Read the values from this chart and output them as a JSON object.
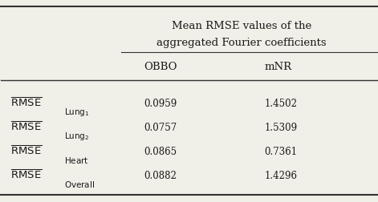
{
  "header_col1_line1": "Mean RMSE values of the",
  "header_col1_line2": "aggregated Fourier coefficients",
  "header_col2": "OBBO",
  "header_col3": "mNR",
  "rows": [
    {
      "label_sub": "Lung",
      "label_subsub": "1",
      "obbo": "0.0959",
      "mnr": "1.4502"
    },
    {
      "label_sub": "Lung",
      "label_subsub": "2",
      "obbo": "0.0757",
      "mnr": "1.5309"
    },
    {
      "label_sub": "Heart",
      "label_subsub": "",
      "obbo": "0.0865",
      "mnr": "0.7361"
    },
    {
      "label_sub": "Overall",
      "label_subsub": "",
      "obbo": "0.0882",
      "mnr": "1.4296"
    }
  ],
  "bg_color": "#f0efe8",
  "text_color": "#1a1a1a",
  "line_color": "#333333"
}
